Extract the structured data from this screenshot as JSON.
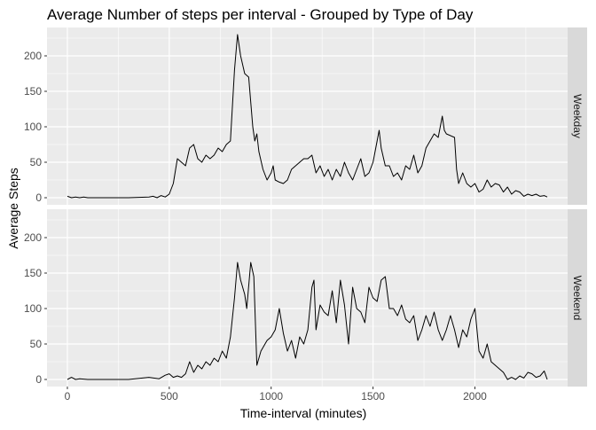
{
  "chart_data": {
    "type": "line",
    "title": "Average Number of steps per interval - Grouped by Type of Day",
    "xlabel": "Time-interval (minutes)",
    "ylabel": "Average Steps",
    "xlim": [
      -100,
      2455
    ],
    "ylim": [
      -10,
      240
    ],
    "x_ticks": [
      0,
      500,
      1000,
      1500,
      2000
    ],
    "x_tick_labels": [
      "0",
      "500",
      "1000",
      "1500",
      "2000"
    ],
    "y_ticks": [
      0,
      50,
      100,
      150,
      200
    ],
    "y_tick_labels": [
      "0",
      "50",
      "100",
      "150",
      "200"
    ],
    "grid": true,
    "facet_position": "right",
    "colors": {
      "panel_bg": "#ebebeb",
      "grid_major": "#ffffff",
      "strip_bg": "#d9d9d9",
      "line": "#000000",
      "tick_label": "#4d4d4d"
    },
    "series": [
      {
        "name": "Weekday",
        "x": [
          0,
          20,
          40,
          60,
          80,
          100,
          200,
          300,
          400,
          420,
          440,
          460,
          480,
          500,
          520,
          540,
          560,
          580,
          600,
          620,
          640,
          660,
          680,
          700,
          720,
          740,
          760,
          780,
          800,
          820,
          835,
          850,
          870,
          890,
          910,
          920,
          930,
          940,
          960,
          980,
          1000,
          1010,
          1020,
          1040,
          1060,
          1080,
          1100,
          1120,
          1140,
          1160,
          1180,
          1200,
          1220,
          1240,
          1260,
          1280,
          1300,
          1320,
          1340,
          1360,
          1380,
          1400,
          1420,
          1440,
          1460,
          1480,
          1500,
          1520,
          1530,
          1540,
          1560,
          1580,
          1600,
          1620,
          1640,
          1660,
          1680,
          1700,
          1720,
          1740,
          1760,
          1780,
          1800,
          1820,
          1840,
          1850,
          1860,
          1900,
          1910,
          1920,
          1940,
          1960,
          1980,
          2000,
          2020,
          2040,
          2060,
          2080,
          2100,
          2120,
          2140,
          2160,
          2180,
          2200,
          2220,
          2240,
          2260,
          2280,
          2300,
          2320,
          2340,
          2355
        ],
        "values": [
          2,
          0,
          1,
          0,
          1,
          0,
          0,
          0,
          1,
          2,
          0,
          3,
          1,
          5,
          20,
          55,
          50,
          45,
          70,
          75,
          55,
          50,
          60,
          55,
          60,
          70,
          65,
          75,
          80,
          180,
          230,
          200,
          175,
          170,
          100,
          80,
          90,
          65,
          40,
          25,
          35,
          45,
          25,
          22,
          20,
          25,
          40,
          45,
          50,
          55,
          55,
          60,
          35,
          45,
          30,
          40,
          25,
          40,
          30,
          50,
          35,
          25,
          40,
          55,
          30,
          35,
          50,
          80,
          95,
          70,
          45,
          45,
          30,
          35,
          25,
          45,
          40,
          60,
          35,
          45,
          70,
          80,
          90,
          85,
          115,
          95,
          90,
          85,
          40,
          20,
          35,
          20,
          15,
          20,
          8,
          12,
          25,
          15,
          20,
          18,
          8,
          15,
          5,
          10,
          8,
          2,
          5,
          3,
          5,
          2,
          3,
          1
        ]
      },
      {
        "name": "Weekend",
        "x": [
          0,
          20,
          40,
          60,
          100,
          200,
          300,
          400,
          450,
          480,
          500,
          520,
          540,
          560,
          580,
          600,
          620,
          640,
          660,
          680,
          700,
          720,
          740,
          760,
          780,
          800,
          820,
          835,
          850,
          870,
          880,
          900,
          915,
          930,
          950,
          960,
          980,
          1000,
          1020,
          1040,
          1060,
          1080,
          1100,
          1120,
          1140,
          1160,
          1180,
          1200,
          1210,
          1220,
          1240,
          1260,
          1280,
          1300,
          1320,
          1340,
          1360,
          1380,
          1400,
          1420,
          1440,
          1460,
          1480,
          1500,
          1520,
          1540,
          1560,
          1580,
          1600,
          1620,
          1640,
          1660,
          1680,
          1700,
          1720,
          1740,
          1760,
          1780,
          1800,
          1820,
          1840,
          1860,
          1880,
          1900,
          1920,
          1940,
          1960,
          1980,
          2000,
          2020,
          2040,
          2060,
          2080,
          2100,
          2120,
          2140,
          2160,
          2180,
          2200,
          2220,
          2240,
          2260,
          2280,
          2300,
          2320,
          2340,
          2355
        ],
        "values": [
          0,
          3,
          0,
          1,
          0,
          0,
          0,
          3,
          1,
          6,
          8,
          3,
          5,
          3,
          8,
          25,
          10,
          20,
          15,
          25,
          20,
          30,
          25,
          40,
          30,
          60,
          115,
          165,
          140,
          120,
          100,
          165,
          145,
          20,
          40,
          45,
          55,
          60,
          70,
          100,
          65,
          40,
          55,
          30,
          60,
          50,
          70,
          130,
          140,
          70,
          105,
          95,
          90,
          125,
          80,
          140,
          105,
          50,
          130,
          100,
          95,
          80,
          130,
          115,
          110,
          140,
          145,
          100,
          100,
          90,
          105,
          85,
          80,
          90,
          55,
          70,
          90,
          75,
          95,
          70,
          55,
          70,
          90,
          70,
          45,
          70,
          60,
          85,
          100,
          40,
          30,
          50,
          25,
          20,
          15,
          10,
          0,
          3,
          0,
          5,
          2,
          10,
          8,
          3,
          5,
          12,
          0
        ]
      }
    ]
  }
}
